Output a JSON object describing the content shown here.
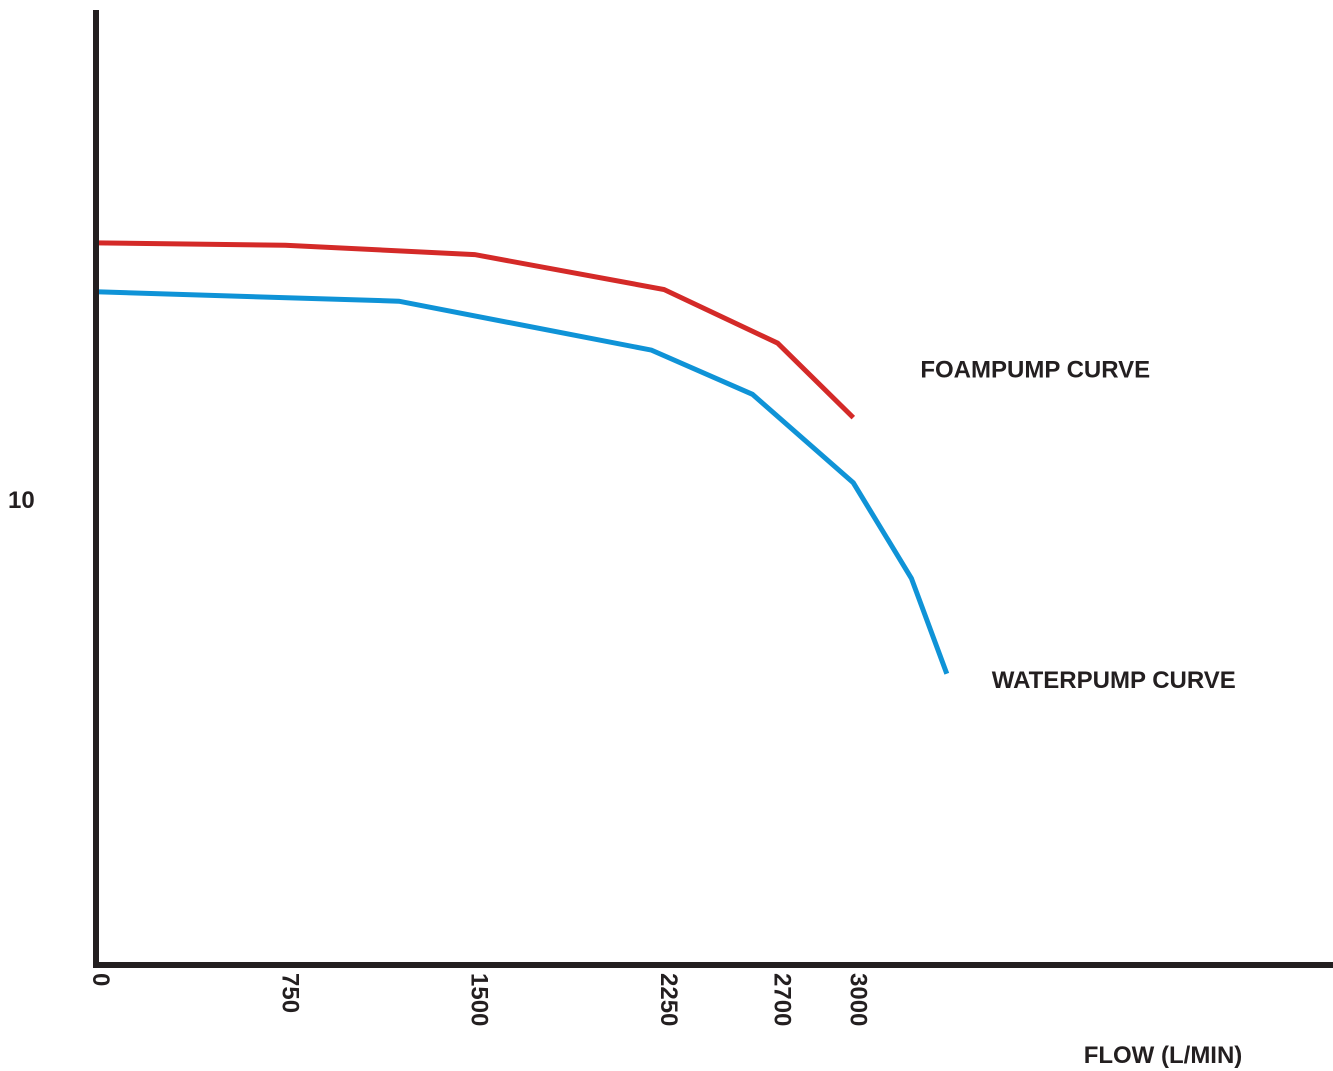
{
  "chart_data": {
    "type": "line",
    "xlabel": "FLOW (L/MIN)",
    "ylabel": "",
    "x_ticks": [
      0,
      750,
      1500,
      2250,
      2700,
      3000
    ],
    "y_ticks": [
      10
    ],
    "xlim": [
      0,
      4900
    ],
    "ylim": [
      0,
      20.5
    ],
    "grid": false,
    "series": [
      {
        "name": "FOAMPUMP CURVE",
        "color": "#d42a28",
        "x": [
          0,
          750,
          1500,
          2250,
          2700,
          3000
        ],
        "y": [
          15.5,
          15.45,
          15.25,
          14.5,
          13.35,
          11.75
        ]
      },
      {
        "name": "WATERPUMP CURVE",
        "color": "#0f93d7",
        "x": [
          0,
          1200,
          2200,
          2600,
          3000,
          3230,
          3370
        ],
        "y": [
          14.45,
          14.25,
          13.2,
          12.25,
          10.35,
          8.3,
          6.25
        ]
      }
    ]
  }
}
